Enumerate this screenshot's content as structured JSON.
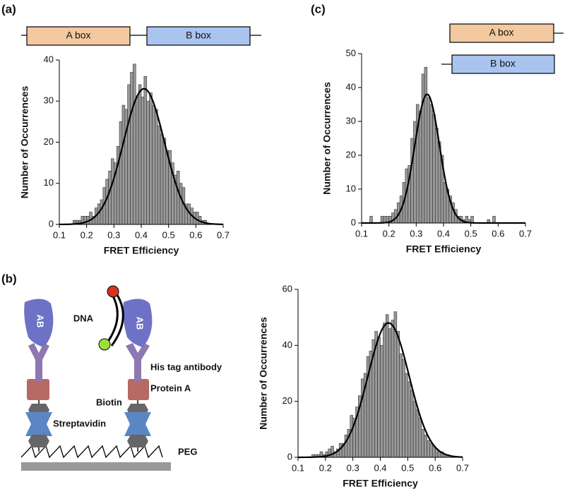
{
  "panel_labels": [
    "(a)",
    "(b)",
    "(c)"
  ],
  "constructs": {
    "a": [
      "A box",
      "B box"
    ],
    "c": [
      "A box",
      "B box"
    ]
  },
  "diagram": {
    "dna": "DNA",
    "antibody": "AB",
    "his_tag": "His tag antibody",
    "protein_a": "Protein A",
    "biotin": "Biotin",
    "streptavidin": "Streptavidin",
    "peg": "PEG"
  },
  "chart_data": [
    {
      "type": "histogram",
      "xlabel": "FRET Efficiency",
      "ylabel": "Number of Occurrences",
      "color": "#999999",
      "bins": [
        0.15,
        0.16,
        0.17,
        0.18,
        0.19,
        0.2,
        0.21,
        0.22,
        0.23,
        0.24,
        0.25,
        0.26,
        0.27,
        0.28,
        0.29,
        0.3,
        0.31,
        0.32,
        0.33,
        0.34,
        0.35,
        0.36,
        0.37,
        0.38,
        0.39,
        0.4,
        0.41,
        0.42,
        0.43,
        0.44,
        0.45,
        0.46,
        0.47,
        0.48,
        0.49,
        0.5,
        0.51,
        0.52,
        0.53,
        0.54,
        0.55,
        0.56,
        0.57,
        0.58,
        0.59,
        0.6,
        0.61,
        0.62,
        0.63,
        0.64
      ],
      "values": [
        1,
        1,
        1,
        2,
        2,
        2,
        3,
        2,
        4,
        5,
        6,
        9,
        11,
        13,
        16,
        15,
        19,
        25,
        29,
        28,
        34,
        37,
        39,
        31,
        34,
        31,
        36,
        30,
        32,
        29,
        28,
        24,
        22,
        21,
        18,
        18,
        15,
        12,
        13,
        10,
        9,
        5,
        5,
        4,
        3,
        3,
        2,
        1,
        1
      ],
      "fit": {
        "peak": 33,
        "mean": 0.41,
        "sd": 0.075
      },
      "xlim": [
        0.1,
        0.7
      ],
      "xticks": [
        0.1,
        0.2,
        0.3,
        0.4,
        0.5,
        0.6,
        0.7
      ],
      "ylim": [
        0,
        40
      ],
      "yticks": [
        0,
        10,
        20,
        30,
        40
      ]
    },
    {
      "type": "histogram",
      "xlabel": "FRET Efficiency",
      "ylabel": "Number of Occurrences",
      "color": "#999999",
      "bins": [
        0.12,
        0.13,
        0.14,
        0.15,
        0.16,
        0.17,
        0.18,
        0.19,
        0.2,
        0.21,
        0.22,
        0.23,
        0.24,
        0.25,
        0.26,
        0.27,
        0.28,
        0.29,
        0.3,
        0.31,
        0.32,
        0.33,
        0.34,
        0.35,
        0.36,
        0.37,
        0.38,
        0.39,
        0.4,
        0.41,
        0.42,
        0.43,
        0.44,
        0.45,
        0.46,
        0.47,
        0.48,
        0.49,
        0.5,
        0.51,
        0.52,
        0.53,
        0.54,
        0.55,
        0.56,
        0.57,
        0.58,
        0.59,
        0.6
      ],
      "values": [
        0,
        2,
        0,
        0,
        0,
        2,
        2,
        2,
        2,
        3,
        4,
        6,
        8,
        12,
        16,
        17,
        25,
        30,
        35,
        33,
        44,
        46,
        37,
        35,
        32,
        28,
        24,
        20,
        12,
        10,
        8,
        6,
        4,
        2,
        2,
        1,
        2,
        1,
        2,
        0,
        0,
        0,
        0,
        0,
        1,
        0,
        2,
        0
      ],
      "fit": {
        "peak": 38,
        "mean": 0.34,
        "sd": 0.045
      },
      "xlim": [
        0.1,
        0.7
      ],
      "xticks": [
        0.1,
        0.2,
        0.3,
        0.4,
        0.5,
        0.6,
        0.7
      ],
      "ylim": [
        0,
        50
      ],
      "yticks": [
        0,
        10,
        20,
        30,
        40,
        50
      ]
    },
    {
      "type": "histogram",
      "xlabel": "FRET Efficiency",
      "ylabel": "Number of Occurrences",
      "color": "#999999",
      "bins": [
        0.15,
        0.16,
        0.17,
        0.18,
        0.19,
        0.2,
        0.21,
        0.22,
        0.23,
        0.24,
        0.25,
        0.26,
        0.27,
        0.28,
        0.29,
        0.3,
        0.31,
        0.32,
        0.33,
        0.34,
        0.35,
        0.36,
        0.37,
        0.38,
        0.39,
        0.4,
        0.41,
        0.42,
        0.43,
        0.44,
        0.45,
        0.46,
        0.47,
        0.48,
        0.49,
        0.5,
        0.51,
        0.52,
        0.53,
        0.54,
        0.55,
        0.56,
        0.57,
        0.58,
        0.59,
        0.6,
        0.61,
        0.62,
        0.63,
        0.64,
        0.65
      ],
      "values": [
        1,
        1,
        1,
        2,
        1,
        2,
        3,
        4,
        2,
        3,
        5,
        5,
        8,
        10,
        15,
        14,
        18,
        22,
        28,
        30,
        36,
        38,
        42,
        45,
        43,
        40,
        48,
        51,
        46,
        49,
        52,
        45,
        37,
        35,
        30,
        27,
        24,
        20,
        17,
        14,
        10,
        8,
        6,
        5,
        4,
        3,
        2,
        2,
        1,
        1
      ],
      "fit": {
        "peak": 48,
        "mean": 0.43,
        "sd": 0.075
      },
      "xlim": [
        0.1,
        0.7
      ],
      "xticks": [
        0.1,
        0.2,
        0.3,
        0.4,
        0.5,
        0.6,
        0.7
      ],
      "ylim": [
        0,
        60
      ],
      "yticks": [
        0,
        20,
        40,
        60
      ]
    }
  ]
}
